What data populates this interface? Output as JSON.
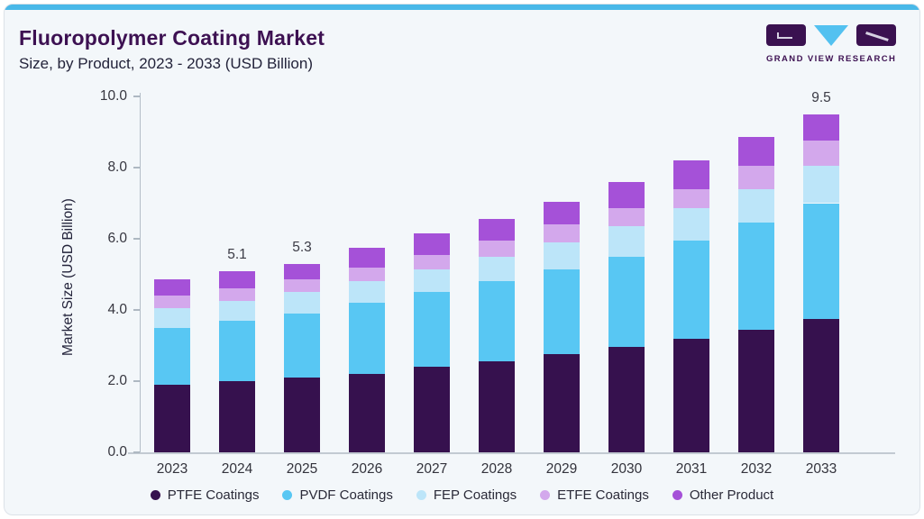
{
  "header": {
    "title": "Fluoropolymer Coating Market",
    "subtitle": "Size, by Product, 2023 - 2033 (USD Billion)"
  },
  "logo": {
    "brand_name": "GRAND VIEW RESEARCH",
    "block_color": "#3a1150",
    "triangle_color": "#53c1f0"
  },
  "colors": {
    "card_background": "#f3f7fa",
    "top_accent": "#49b8e8",
    "title_purple": "#3d1152",
    "axis_line": "#b4bec8",
    "text_dark": "#23233a"
  },
  "chart_data": {
    "type": "bar",
    "stacked": true,
    "title": "Fluoropolymer Coating Market Size, by Product, 2023 - 2033 (USD Billion)",
    "categories": [
      "2023",
      "2024",
      "2025",
      "2026",
      "2027",
      "2028",
      "2029",
      "2030",
      "2031",
      "2032",
      "2033"
    ],
    "series": [
      {
        "name": "PTFE Coatings",
        "color": "#36114e",
        "values": [
          1.9,
          2.0,
          2.1,
          2.2,
          2.4,
          2.55,
          2.75,
          2.95,
          3.2,
          3.45,
          3.75
        ]
      },
      {
        "name": "PVDF Coatings",
        "color": "#58c7f3",
        "values": [
          1.6,
          1.7,
          1.8,
          2.0,
          2.1,
          2.25,
          2.4,
          2.55,
          2.75,
          3.0,
          3.25
        ]
      },
      {
        "name": "FEP Coatings",
        "color": "#bce5f9",
        "values": [
          0.55,
          0.55,
          0.6,
          0.6,
          0.65,
          0.7,
          0.75,
          0.85,
          0.9,
          0.95,
          1.05
        ]
      },
      {
        "name": "ETFE Coatings",
        "color": "#d3a8ec",
        "values": [
          0.35,
          0.35,
          0.35,
          0.4,
          0.4,
          0.45,
          0.5,
          0.5,
          0.55,
          0.65,
          0.7
        ]
      },
      {
        "name": "Other Product",
        "color": "#a551d8",
        "values": [
          0.45,
          0.5,
          0.45,
          0.55,
          0.6,
          0.6,
          0.65,
          0.75,
          0.8,
          0.8,
          0.75
        ]
      }
    ],
    "totals": [
      4.85,
      5.1,
      5.3,
      5.75,
      6.15,
      6.55,
      7.05,
      7.6,
      8.2,
      8.85,
      9.5
    ],
    "bar_total_labels": [
      null,
      "5.1",
      "5.3",
      null,
      null,
      null,
      null,
      null,
      null,
      null,
      "9.5"
    ],
    "xlabel": "",
    "ylabel": "Market Size (USD Billion)",
    "ylim": [
      0,
      10
    ],
    "ytick_labels": [
      "0.0",
      "2.0",
      "4.0",
      "6.0",
      "8.0",
      "10.0"
    ],
    "ytick_values": [
      0,
      2,
      4,
      6,
      8,
      10
    ],
    "grid": false,
    "legend_position": "bottom"
  }
}
